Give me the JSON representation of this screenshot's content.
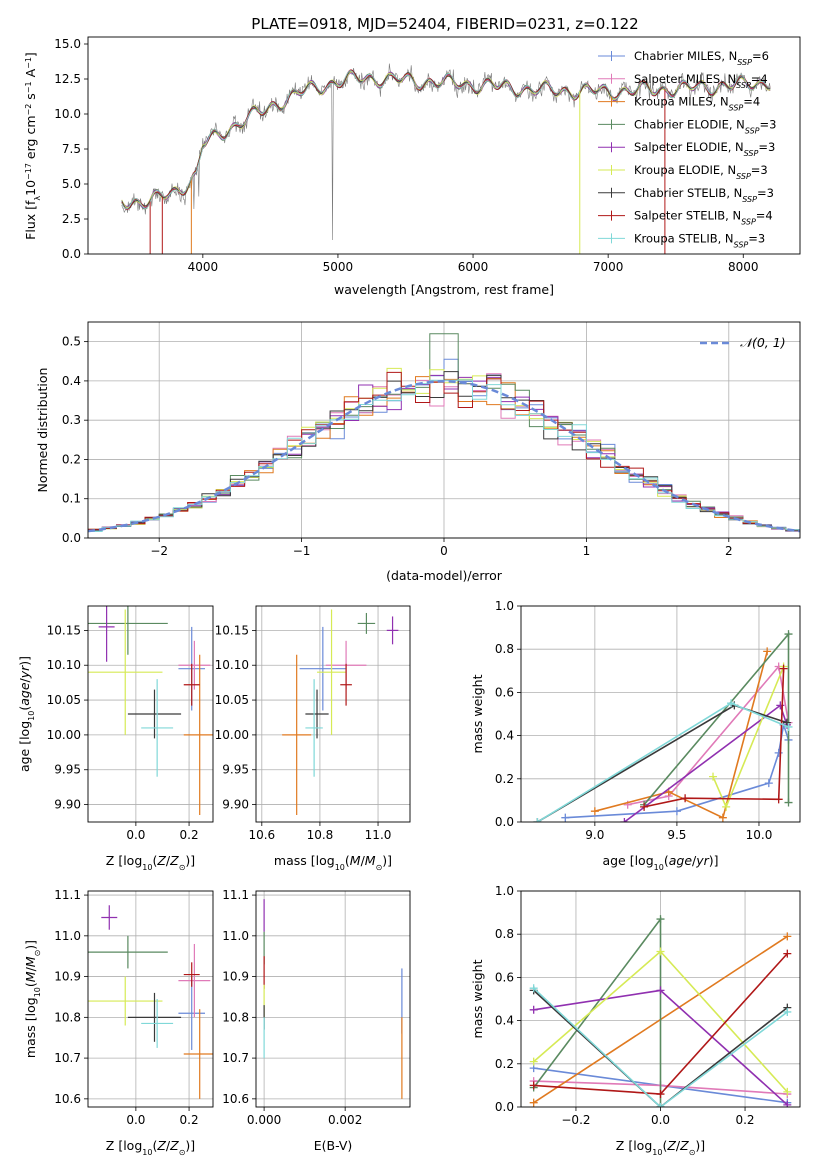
{
  "page_title": "PLATE=0918, MJD=52404, FIBERID=0231, z=0.122",
  "colors": {
    "Chabrier MILES": "#6a8ad8",
    "Salpeter MILES": "#e07ab8",
    "Kroupa MILES": "#e07a20",
    "Chabrier ELODIE": "#5a8a60",
    "Salpeter ELODIE": "#9030b0",
    "Kroupa ELODIE": "#d6ea55",
    "Chabrier STELIB": "#3a3a3a",
    "Salpeter STELIB": "#b01818",
    "Kroupa STELIB": "#80d8d8",
    "data": "#7a7a7a",
    "normal": "#6a8ad8"
  },
  "chart_data": [
    {
      "id": "spectrum",
      "type": "line",
      "title": "PLATE=0918, MJD=52404, FIBERID=0231, z=0.122",
      "xlabel": "wavelength [Angstrom, rest frame]",
      "ylabel": "Flux [f_λ 10^-17 erg cm^-2 s^-1 A^-1]",
      "xlim": [
        3150,
        8420
      ],
      "ylim": [
        0,
        15.5
      ],
      "xticks": [
        "4000",
        "5000",
        "6000",
        "7000",
        "8000"
      ],
      "yticks": [
        "0.0",
        "2.5",
        "5.0",
        "7.5",
        "10.0",
        "12.5",
        "15.0"
      ],
      "legend_position": "right",
      "legend": [
        {
          "label": "Chabrier MILES",
          "nssp": "6"
        },
        {
          "label": "Salpeter MILES",
          "nssp": "4"
        },
        {
          "label": "Kroupa MILES",
          "nssp": "4"
        },
        {
          "label": "Chabrier ELODIE",
          "nssp": "3"
        },
        {
          "label": "Salpeter ELODIE",
          "nssp": "3"
        },
        {
          "label": "Kroupa ELODIE",
          "nssp": "3"
        },
        {
          "label": "Chabrier STELIB",
          "nssp": "3"
        },
        {
          "label": "Salpeter STELIB",
          "nssp": "4"
        },
        {
          "label": "Kroupa STELIB",
          "nssp": "3"
        }
      ],
      "continuum": {
        "x": [
          3400,
          3600,
          3800,
          3950,
          4000,
          4200,
          4400,
          4600,
          4800,
          5000,
          5200,
          5500,
          6000,
          6500,
          7000,
          7500,
          8000,
          8200
        ],
        "y": [
          3.8,
          3.7,
          4.5,
          5.5,
          7.8,
          9.0,
          10.0,
          11.0,
          11.8,
          12.3,
          12.6,
          12.4,
          12.1,
          11.7,
          11.6,
          11.8,
          12.1,
          12.3
        ]
      }
    },
    {
      "id": "residuals",
      "type": "histogram",
      "xlabel": "(data-model)/error",
      "ylabel": "Normed distribution",
      "xlim": [
        -2.5,
        2.5
      ],
      "ylim": [
        0,
        0.55
      ],
      "xticks": [
        "−2",
        "−1",
        "0",
        "1",
        "2"
      ],
      "yticks": [
        "0.0",
        "0.1",
        "0.2",
        "0.3",
        "0.4",
        "0.5"
      ],
      "legend": "𝒩(0, 1)",
      "legend_position": "top-right",
      "grid": true
    },
    {
      "id": "age-vs-z",
      "type": "scatter",
      "xlabel": "Z [log10(Z/Z⊙)]",
      "ylabel": "age  [log10(age/yr)]",
      "xlim": [
        -0.18,
        0.29
      ],
      "ylim": [
        9.875,
        10.185
      ],
      "xticks": [
        "0.0",
        "0.2"
      ],
      "yticks": [
        "9.90",
        "9.95",
        "10.00",
        "10.05",
        "10.10",
        "10.15"
      ],
      "grid": true,
      "points": [
        {
          "series": "Chabrier MILES",
          "x": 0.21,
          "y": 10.095,
          "xerr": 0.05,
          "yerr": 0.06
        },
        {
          "series": "Salpeter MILES",
          "x": 0.22,
          "y": 10.1,
          "xerr": 0.06,
          "yerr": 0.035
        },
        {
          "series": "Kroupa MILES",
          "x": 0.24,
          "y": 10.0,
          "xerr": 0.06,
          "yerr": 0.115
        },
        {
          "series": "Chabrier ELODIE",
          "x": -0.03,
          "y": 10.16,
          "xerr": 0.15,
          "yerr": 0.045
        },
        {
          "series": "Salpeter ELODIE",
          "x": -0.11,
          "y": 10.155,
          "xerr": 0.03,
          "yerr": 0.05
        },
        {
          "series": "Kroupa ELODIE",
          "x": -0.04,
          "y": 10.09,
          "xerr": 0.14,
          "yerr": 0.09
        },
        {
          "series": "Chabrier STELIB",
          "x": 0.07,
          "y": 10.03,
          "xerr": 0.1,
          "yerr": 0.035
        },
        {
          "series": "Salpeter STELIB",
          "x": 0.21,
          "y": 10.072,
          "xerr": 0.03,
          "yerr": 0.03
        },
        {
          "series": "Kroupa STELIB",
          "x": 0.08,
          "y": 10.01,
          "xerr": 0.06,
          "yerr": 0.07
        }
      ]
    },
    {
      "id": "age-vs-mass",
      "type": "scatter",
      "xlabel": "mass [log10(M/M⊙)]",
      "ylabel": "",
      "xlim": [
        10.58,
        11.11
      ],
      "ylim": [
        9.875,
        10.185
      ],
      "xticks": [
        "10.6",
        "10.8",
        "11.0"
      ],
      "yticks": [
        "9.90",
        "9.95",
        "10.00",
        "10.05",
        "10.10",
        "10.15"
      ],
      "grid": true,
      "points": [
        {
          "series": "Chabrier MILES",
          "x": 10.81,
          "y": 10.095,
          "xerr": 0.08,
          "yerr": 0.06
        },
        {
          "series": "Salpeter MILES",
          "x": 10.89,
          "y": 10.1,
          "xerr": 0.07,
          "yerr": 0.035
        },
        {
          "series": "Kroupa MILES",
          "x": 10.72,
          "y": 10.0,
          "xerr": 0.05,
          "yerr": 0.115
        },
        {
          "series": "Chabrier ELODIE",
          "x": 10.96,
          "y": 10.16,
          "xerr": 0.03,
          "yerr": 0.015
        },
        {
          "series": "Salpeter ELODIE",
          "x": 11.05,
          "y": 10.15,
          "xerr": 0.02,
          "yerr": 0.02
        },
        {
          "series": "Kroupa ELODIE",
          "x": 10.84,
          "y": 10.09,
          "xerr": 0.05,
          "yerr": 0.09
        },
        {
          "series": "Chabrier STELIB",
          "x": 10.79,
          "y": 10.03,
          "xerr": 0.04,
          "yerr": 0.035
        },
        {
          "series": "Salpeter STELIB",
          "x": 10.89,
          "y": 10.072,
          "xerr": 0.02,
          "yerr": 0.03
        },
        {
          "series": "Kroupa STELIB",
          "x": 10.78,
          "y": 10.01,
          "xerr": 0.03,
          "yerr": 0.07
        }
      ]
    },
    {
      "id": "mass-weight-vs-age",
      "type": "line",
      "xlabel": "age  [log10(age/yr)]",
      "ylabel": "mass weight",
      "xlim": [
        8.55,
        10.25
      ],
      "ylim": [
        0,
        1.0
      ],
      "xticks": [
        "9.0",
        "9.5",
        "10.0"
      ],
      "yticks": [
        "0.0",
        "0.2",
        "0.4",
        "0.6",
        "0.8",
        "1.0"
      ],
      "grid": true,
      "series": [
        {
          "name": "Chabrier MILES",
          "x": [
            8.82,
            9.5,
            10.06,
            10.12,
            10.15,
            10.18
          ],
          "y": [
            0.02,
            0.05,
            0.18,
            0.32,
            0.45,
            0.38
          ]
        },
        {
          "name": "Salpeter MILES",
          "x": [
            9.2,
            9.45,
            10.12,
            10.18
          ],
          "y": [
            0.08,
            0.12,
            0.72,
            0.46
          ]
        },
        {
          "name": "Kroupa MILES",
          "x": [
            9.0,
            9.45,
            9.78,
            10.05
          ],
          "y": [
            0.05,
            0.14,
            0.02,
            0.79
          ]
        },
        {
          "name": "Chabrier ELODIE",
          "x": [
            9.3,
            10.18,
            10.18
          ],
          "y": [
            0.08,
            0.87,
            0.09
          ]
        },
        {
          "name": "Salpeter ELODIE",
          "x": [
            9.18,
            10.13,
            10.17
          ],
          "y": [
            0.0,
            0.54,
            0.45
          ]
        },
        {
          "name": "Kroupa ELODIE",
          "x": [
            9.72,
            9.8,
            10.15
          ],
          "y": [
            0.21,
            0.07,
            0.72
          ]
        },
        {
          "name": "Chabrier STELIB",
          "x": [
            8.65,
            9.85,
            10.17
          ],
          "y": [
            0.0,
            0.54,
            0.46
          ]
        },
        {
          "name": "Salpeter STELIB",
          "x": [
            9.3,
            9.55,
            10.12,
            10.15
          ],
          "y": [
            0.07,
            0.11,
            0.105,
            0.71
          ]
        },
        {
          "name": "Kroupa STELIB",
          "x": [
            8.65,
            9.83,
            10.18
          ],
          "y": [
            0.0,
            0.55,
            0.44
          ]
        }
      ]
    },
    {
      "id": "mass-vs-z",
      "type": "scatter",
      "xlabel": "Z [log10(Z/Z⊙)]",
      "ylabel": "mass [log10(M/M⊙)]",
      "xlim": [
        -0.18,
        0.29
      ],
      "ylim": [
        10.58,
        11.11
      ],
      "xticks": [
        "0.0",
        "0.2"
      ],
      "yticks": [
        "10.6",
        "10.7",
        "10.8",
        "10.9",
        "11.0",
        "11.1"
      ],
      "grid": true,
      "points": [
        {
          "series": "Chabrier MILES",
          "x": 0.21,
          "y": 10.81,
          "xerr": 0.05,
          "yerr": 0.09
        },
        {
          "series": "Salpeter MILES",
          "x": 0.22,
          "y": 10.89,
          "xerr": 0.06,
          "yerr": 0.09
        },
        {
          "series": "Kroupa MILES",
          "x": 0.24,
          "y": 10.71,
          "xerr": 0.06,
          "yerr": 0.11
        },
        {
          "series": "Chabrier ELODIE",
          "x": -0.03,
          "y": 10.96,
          "xerr": 0.15,
          "yerr": 0.04
        },
        {
          "series": "Salpeter ELODIE",
          "x": -0.1,
          "y": 11.045,
          "xerr": 0.03,
          "yerr": 0.03
        },
        {
          "series": "Kroupa ELODIE",
          "x": -0.04,
          "y": 10.84,
          "xerr": 0.14,
          "yerr": 0.06
        },
        {
          "series": "Chabrier STELIB",
          "x": 0.07,
          "y": 10.8,
          "xerr": 0.1,
          "yerr": 0.06
        },
        {
          "series": "Salpeter STELIB",
          "x": 0.21,
          "y": 10.905,
          "xerr": 0.03,
          "yerr": 0.03
        },
        {
          "series": "Kroupa STELIB",
          "x": 0.08,
          "y": 10.785,
          "xerr": 0.06,
          "yerr": 0.06
        }
      ]
    },
    {
      "id": "mass-vs-ebv",
      "type": "scatter",
      "xlabel": "E(B-V)",
      "ylabel": "",
      "xlim": [
        -0.0002,
        0.0036
      ],
      "ylim": [
        10.58,
        11.11
      ],
      "xticks": [
        "0.000",
        "0.002"
      ],
      "yticks": [
        "10.6",
        "10.7",
        "10.8",
        "10.9",
        "11.0",
        "11.1"
      ],
      "grid": true,
      "points": [
        {
          "series": "Chabrier MILES",
          "x": 0.0034,
          "y": 10.84,
          "xerr": 0,
          "yerr": 0.08
        },
        {
          "series": "Kroupa MILES",
          "x": 0.0034,
          "y": 10.7,
          "xerr": 0,
          "yerr": 0.1
        },
        {
          "series": "Salpeter ELODIE",
          "x": 0.0,
          "y": 11.05,
          "xerr": 0,
          "yerr": 0.04
        },
        {
          "series": "Chabrier ELODIE",
          "x": 0.0,
          "y": 10.97,
          "xerr": 0,
          "yerr": 0.04
        },
        {
          "series": "Salpeter STELIB",
          "x": 0.0,
          "y": 10.91,
          "xerr": 0,
          "yerr": 0.04
        },
        {
          "series": "Kroupa ELODIE",
          "x": 0.0,
          "y": 10.84,
          "xerr": 0,
          "yerr": 0.04
        },
        {
          "series": "Chabrier STELIB",
          "x": 0.0,
          "y": 10.8,
          "xerr": 0,
          "yerr": 0.03
        },
        {
          "series": "Kroupa STELIB",
          "x": 0.0,
          "y": 10.75,
          "xerr": 0,
          "yerr": 0.05
        }
      ]
    },
    {
      "id": "mass-weight-vs-z",
      "type": "line",
      "xlabel": "Z [log10(Z/Z⊙)]",
      "ylabel": "mass weight",
      "xlim": [
        -0.33,
        0.33
      ],
      "ylim": [
        0,
        1.0
      ],
      "xticks": [
        "−0.2",
        "0.0",
        "0.2"
      ],
      "yticks": [
        "0.0",
        "0.2",
        "0.4",
        "0.6",
        "0.8",
        "1.0"
      ],
      "grid": true,
      "series": [
        {
          "name": "Chabrier MILES",
          "x": [
            -0.3,
            0.0,
            0.3
          ],
          "y": [
            0.18,
            0.1,
            0.02
          ]
        },
        {
          "name": "Salpeter MILES",
          "x": [
            -0.3,
            0.0,
            0.3
          ],
          "y": [
            0.12,
            0.1,
            0.06
          ]
        },
        {
          "name": "Kroupa MILES",
          "x": [
            -0.3,
            0.3
          ],
          "y": [
            0.02,
            0.79
          ]
        },
        {
          "name": "Chabrier ELODIE",
          "x": [
            -0.3,
            0.0,
            0.0
          ],
          "y": [
            0.09,
            0.87,
            0.0
          ]
        },
        {
          "name": "Salpeter ELODIE",
          "x": [
            -0.3,
            0.0,
            0.3
          ],
          "y": [
            0.45,
            0.54,
            0.01
          ]
        },
        {
          "name": "Kroupa ELODIE",
          "x": [
            -0.3,
            0.0,
            0.3
          ],
          "y": [
            0.21,
            0.72,
            0.07
          ]
        },
        {
          "name": "Chabrier STELIB",
          "x": [
            -0.3,
            0.0,
            0.3
          ],
          "y": [
            0.54,
            0.0,
            0.46
          ]
        },
        {
          "name": "Salpeter STELIB",
          "x": [
            -0.3,
            0.0,
            0.3
          ],
          "y": [
            0.1,
            0.06,
            0.71
          ]
        },
        {
          "name": "Kroupa STELIB",
          "x": [
            -0.3,
            0.0,
            0.3
          ],
          "y": [
            0.55,
            0.0,
            0.44
          ]
        }
      ]
    }
  ]
}
